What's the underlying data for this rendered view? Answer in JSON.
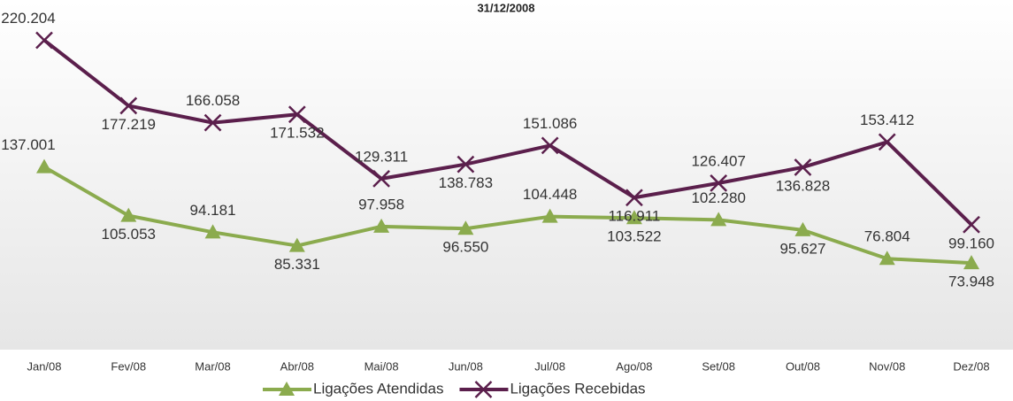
{
  "chart_data": {
    "type": "line",
    "title": "31/12/2008",
    "categories": [
      "Jan/08",
      "Fev/08",
      "Mar/08",
      "Abr/08",
      "Mai/08",
      "Jun/08",
      "Jul/08",
      "Ago/08",
      "Set/08",
      "Out/08",
      "Nov/08",
      "Dez/08"
    ],
    "series": [
      {
        "name": "Ligações Atendidas",
        "color": "#8bab4e",
        "marker": "triangle",
        "values": [
          137001,
          105053,
          94181,
          85331,
          97958,
          96550,
          104448,
          103522,
          102280,
          95627,
          76804,
          73948
        ],
        "value_labels": [
          "137.001",
          "105.053",
          "94.181",
          "85.331",
          "97.958",
          "96.550",
          "104.448",
          "103.522",
          "102.280",
          "95.627",
          "76.804",
          "73.948"
        ]
      },
      {
        "name": "Ligações Recebidas",
        "color": "#5b1f4c",
        "marker": "x",
        "values": [
          220204,
          177219,
          166058,
          171532,
          129311,
          138783,
          151086,
          116911,
          126407,
          136828,
          153412,
          99160
        ],
        "value_labels": [
          "220.204",
          "177.219",
          "166.058",
          "171.532",
          "129.311",
          "138.783",
          "151.086",
          "116.911",
          "126.407",
          "136.828",
          "153.412",
          "99.160"
        ]
      }
    ],
    "ylim": [
      20000,
      235000
    ],
    "legend": "bottom"
  }
}
